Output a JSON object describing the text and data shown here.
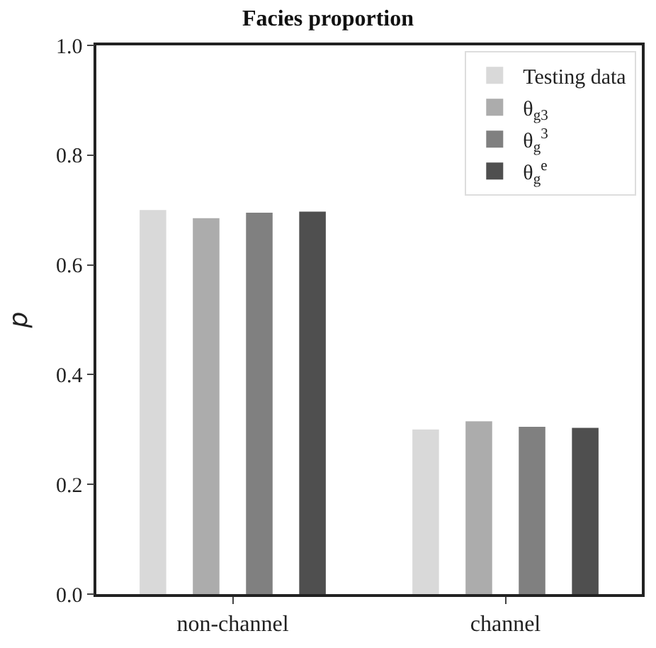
{
  "chart_data": {
    "type": "bar",
    "title": "Facies proportion",
    "ylabel": "p",
    "categories": [
      "non-channel",
      "channel"
    ],
    "series": [
      {
        "name": "Testing data",
        "color": "#d9d9d9",
        "values": [
          0.7,
          0.3
        ]
      },
      {
        "name": "θ$_{g3}$",
        "color": "#acacac",
        "values": [
          0.685,
          0.315
        ]
      },
      {
        "name": "θ$_{g}$$^{3}$",
        "color": "#808080",
        "values": [
          0.695,
          0.305
        ]
      },
      {
        "name": "θ$_{g}$$^{e}$",
        "color": "#4f4f4f",
        "values": [
          0.697,
          0.303
        ]
      }
    ],
    "ylim": [
      0,
      1.0
    ],
    "yticks": [
      {
        "value": 0,
        "label": "0.0"
      },
      0.2,
      0.4,
      0.6,
      0.8,
      {
        "value": 1.0,
        "label": "1.0"
      }
    ],
    "legend": "top right"
  }
}
